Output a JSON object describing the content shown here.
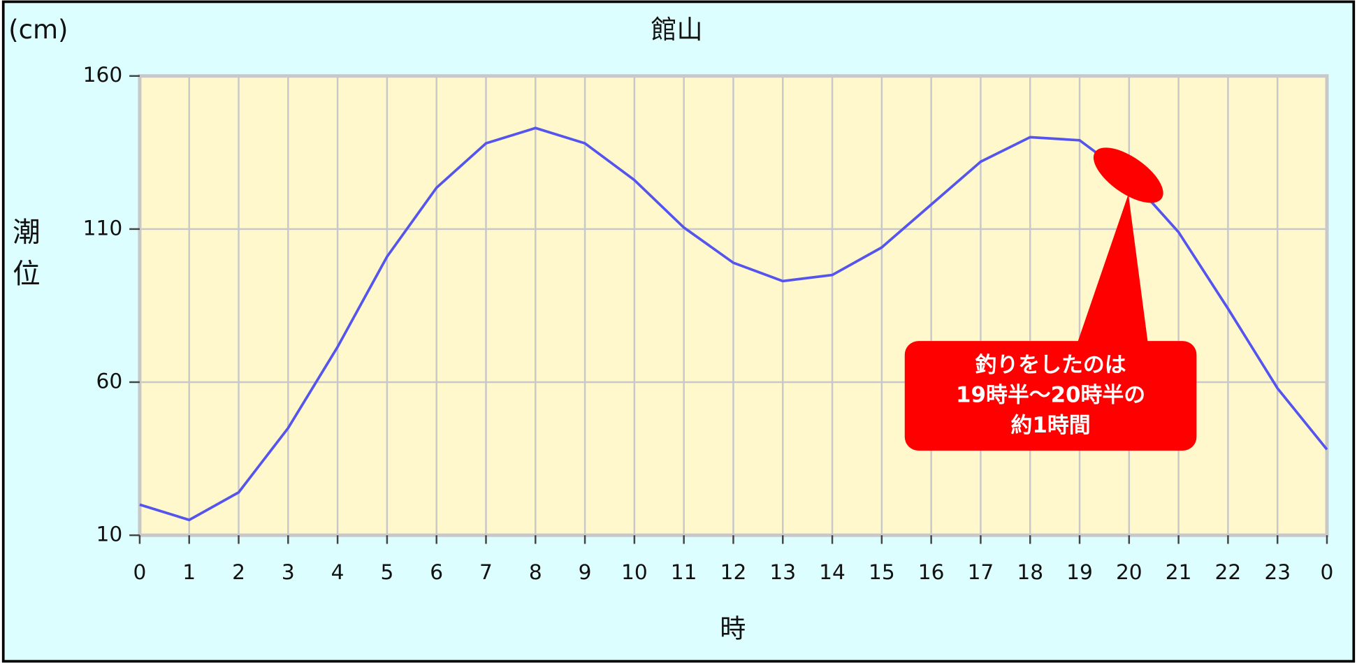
{
  "chart_data": {
    "type": "line",
    "title": "館山",
    "y_unit": "(cm)",
    "ylabel": "潮位",
    "xlabel": "時",
    "categories": [
      "0",
      "1",
      "2",
      "3",
      "4",
      "5",
      "6",
      "7",
      "8",
      "9",
      "10",
      "11",
      "12",
      "13",
      "14",
      "15",
      "16",
      "17",
      "18",
      "19",
      "20",
      "21",
      "22",
      "23",
      "0"
    ],
    "series": [
      {
        "name": "潮位",
        "color": "#5555ee",
        "values": [
          20,
          15,
          24,
          45,
          71.5,
          101,
          123.5,
          138,
          143,
          138,
          126,
          110.5,
          99,
          93,
          95,
          104,
          118,
          132,
          140,
          139,
          127,
          109,
          84,
          58,
          38
        ]
      }
    ],
    "ylim": [
      10,
      160
    ],
    "yticks": [
      10,
      60,
      110,
      160
    ],
    "grid": true,
    "annotation": [
      "釣りをしたのは",
      "19時半～20時半の",
      "約1時間"
    ]
  }
}
